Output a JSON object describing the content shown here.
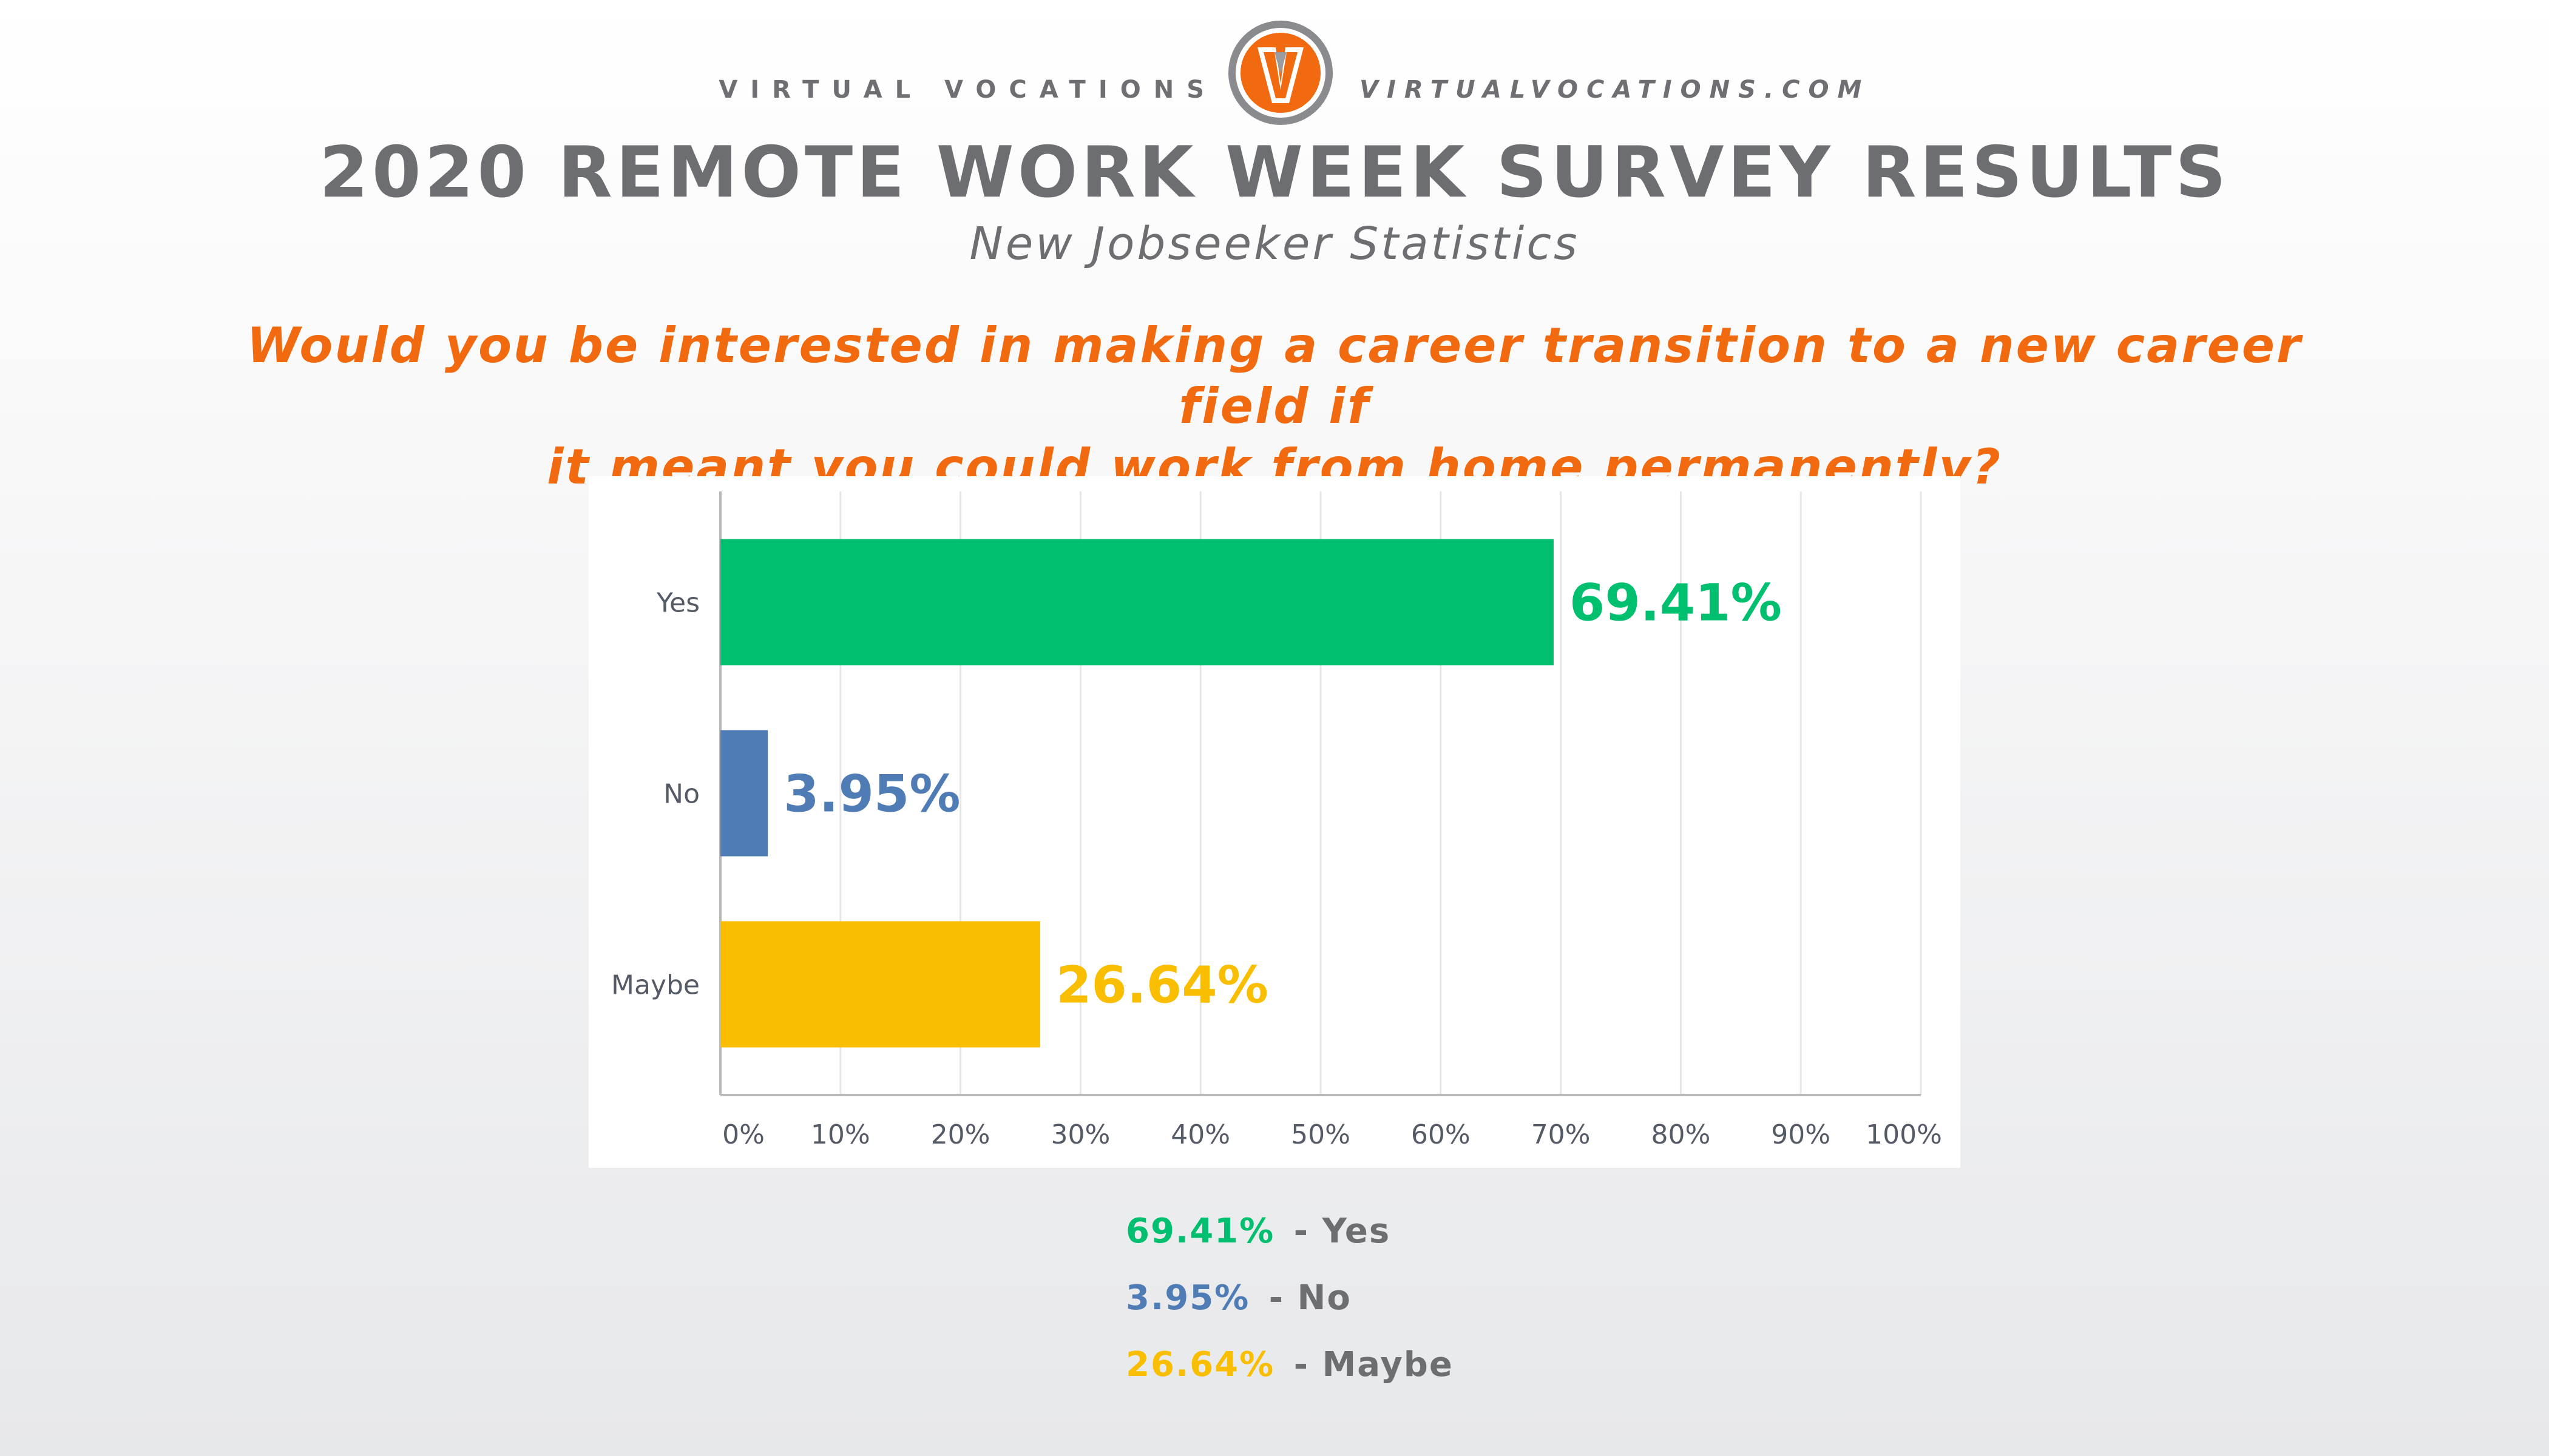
{
  "header": {
    "brand_left": "VIRTUAL VOCATIONS",
    "brand_right": "VIRTUALVOCATIONS.COM",
    "logo_letter": "V",
    "title": "2020 REMOTE WORK WEEK SURVEY RESULTS",
    "subtitle": "New Jobseeker Statistics"
  },
  "question_lines": [
    "Would you be interested in making a career transition to a new career field if",
    "it meant you could work from home permanently?"
  ],
  "colors": {
    "brand_orange": "#f26a10",
    "title_gray": "#6d6e71",
    "yes": "#00bf6f",
    "no": "#507cb6",
    "maybe": "#f9be00"
  },
  "chart_data": {
    "type": "bar",
    "orientation": "horizontal",
    "categories": [
      "Yes",
      "No",
      "Maybe"
    ],
    "values": [
      69.41,
      3.95,
      26.64
    ],
    "data_labels": [
      "69.41%",
      "3.95%",
      "26.64%"
    ],
    "colors": [
      "#00bf6f",
      "#507cb6",
      "#f9be00"
    ],
    "x_ticks": [
      0,
      10,
      20,
      30,
      40,
      50,
      60,
      70,
      80,
      90,
      100
    ],
    "x_tick_labels": [
      "0%",
      "10%",
      "20%",
      "30%",
      "40%",
      "50%",
      "60%",
      "70%",
      "80%",
      "90%",
      "100%"
    ],
    "xlim": [
      0,
      100
    ],
    "grid": true
  },
  "legend": [
    {
      "value": "69.41%",
      "separator": " - ",
      "label": "Yes",
      "color": "#00bf6f"
    },
    {
      "value": "3.95%",
      "separator": " - ",
      "label": "No",
      "color": "#507cb6"
    },
    {
      "value": "26.64%",
      "separator": " - ",
      "label": "Maybe",
      "color": "#f9be00"
    }
  ]
}
